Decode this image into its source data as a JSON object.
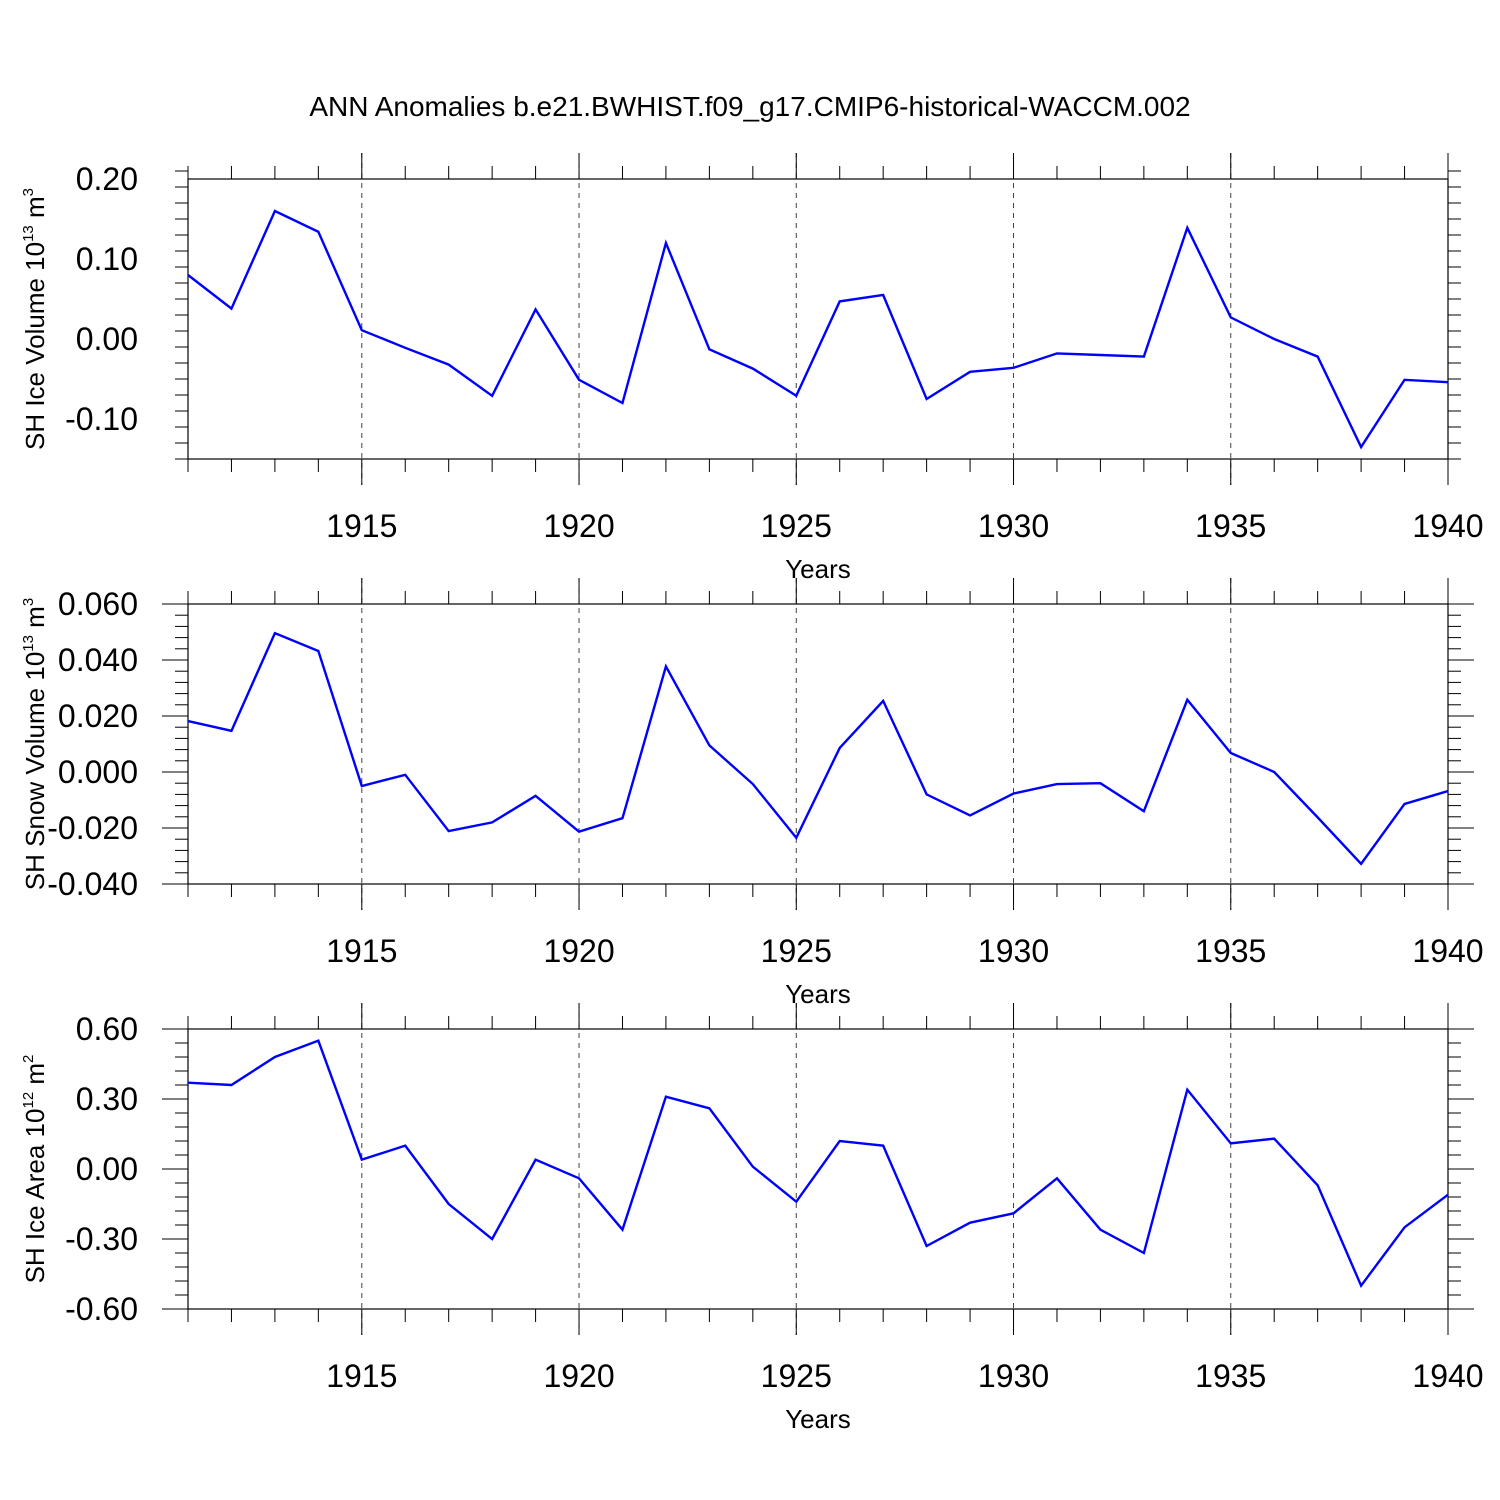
{
  "title": "ANN Anomalies b.e21.BWHIST.f09_g17.CMIP6-historical-WACCM.002",
  "line_color": "#0000ff",
  "chart_data": [
    {
      "type": "line",
      "ylabel": "SH Ice Volume 10",
      "ylabel_exp": "13",
      "ylabel_unit": " m",
      "ylabel_unit_exp": "3",
      "xlabel": "Years",
      "xlim": [
        1911,
        1940
      ],
      "ylim": [
        -0.15,
        0.2
      ],
      "yticks": [
        0.2,
        0.1,
        0.0,
        -0.1
      ],
      "ytick_labels": [
        "0.20",
        "0.10",
        "0.00",
        "-0.10"
      ],
      "xticks": [
        1915,
        1920,
        1925,
        1930,
        1935,
        1940
      ],
      "xtick_labels": [
        "1915",
        "1920",
        "1925",
        "1930",
        "1935",
        "1940"
      ],
      "x": [
        1911,
        1912,
        1913,
        1914,
        1915,
        1916,
        1917,
        1918,
        1919,
        1920,
        1921,
        1922,
        1923,
        1924,
        1925,
        1926,
        1927,
        1928,
        1929,
        1930,
        1931,
        1932,
        1933,
        1934,
        1935,
        1936,
        1937,
        1938,
        1939,
        1940
      ],
      "y": [
        0.08,
        0.038,
        0.16,
        0.134,
        0.011,
        -0.011,
        -0.032,
        -0.071,
        0.037,
        -0.051,
        -0.08,
        0.12,
        -0.013,
        -0.037,
        -0.071,
        0.047,
        0.055,
        -0.075,
        -0.041,
        -0.036,
        -0.018,
        -0.02,
        -0.022,
        0.139,
        0.027,
        0.0,
        -0.022,
        -0.135,
        -0.051,
        -0.054
      ]
    },
    {
      "type": "line",
      "ylabel": "SH Snow Volume 10",
      "ylabel_exp": "13",
      "ylabel_unit": " m",
      "ylabel_unit_exp": "3",
      "xlabel": "Years",
      "xlim": [
        1911,
        1940
      ],
      "ylim": [
        -0.04,
        0.06
      ],
      "yticks": [
        0.06,
        0.04,
        0.02,
        0.0,
        -0.02,
        -0.04
      ],
      "ytick_labels": [
        "0.060",
        "0.040",
        "0.020",
        "0.000",
        "-0.020",
        "-0.040"
      ],
      "xticks": [
        1915,
        1920,
        1925,
        1930,
        1935,
        1940
      ],
      "xtick_labels": [
        "1915",
        "1920",
        "1925",
        "1930",
        "1935",
        "1940"
      ],
      "x": [
        1911,
        1912,
        1913,
        1914,
        1915,
        1916,
        1917,
        1918,
        1919,
        1920,
        1921,
        1922,
        1923,
        1924,
        1925,
        1926,
        1927,
        1928,
        1929,
        1930,
        1931,
        1932,
        1933,
        1934,
        1935,
        1936,
        1937,
        1938,
        1939,
        1940
      ],
      "y": [
        0.0182,
        0.0147,
        0.0496,
        0.0432,
        -0.005,
        -0.001,
        -0.0211,
        -0.018,
        -0.0085,
        -0.0213,
        -0.0165,
        0.0377,
        0.0095,
        -0.0043,
        -0.0235,
        0.0086,
        0.0254,
        -0.008,
        -0.0155,
        -0.0077,
        -0.0043,
        -0.004,
        -0.014,
        0.0258,
        0.0068,
        0.0,
        -0.0162,
        -0.0328,
        -0.0114,
        -0.0068
      ]
    },
    {
      "type": "line",
      "ylabel": "SH Ice Area 10",
      "ylabel_exp": "12",
      "ylabel_unit": " m",
      "ylabel_unit_exp": "2",
      "xlabel": "Years",
      "xlim": [
        1911,
        1940
      ],
      "ylim": [
        -0.6,
        0.6
      ],
      "yticks": [
        0.6,
        0.3,
        0.0,
        -0.3,
        -0.6
      ],
      "ytick_labels": [
        "0.60",
        "0.30",
        "0.00",
        "-0.30",
        "-0.60"
      ],
      "xticks": [
        1915,
        1920,
        1925,
        1930,
        1935,
        1940
      ],
      "xtick_labels": [
        "1915",
        "1920",
        "1925",
        "1930",
        "1935",
        "1940"
      ],
      "x": [
        1911,
        1912,
        1913,
        1914,
        1915,
        1916,
        1917,
        1918,
        1919,
        1920,
        1921,
        1922,
        1923,
        1924,
        1925,
        1926,
        1927,
        1928,
        1929,
        1930,
        1931,
        1932,
        1933,
        1934,
        1935,
        1936,
        1937,
        1938,
        1939,
        1940
      ],
      "y": [
        0.37,
        0.36,
        0.48,
        0.55,
        0.04,
        0.1,
        -0.15,
        -0.3,
        0.04,
        -0.04,
        -0.26,
        0.31,
        0.26,
        0.01,
        -0.14,
        0.12,
        0.1,
        -0.33,
        -0.23,
        -0.19,
        -0.04,
        -0.26,
        -0.36,
        0.34,
        0.11,
        0.13,
        -0.07,
        -0.5,
        -0.25,
        -0.11
      ]
    }
  ]
}
